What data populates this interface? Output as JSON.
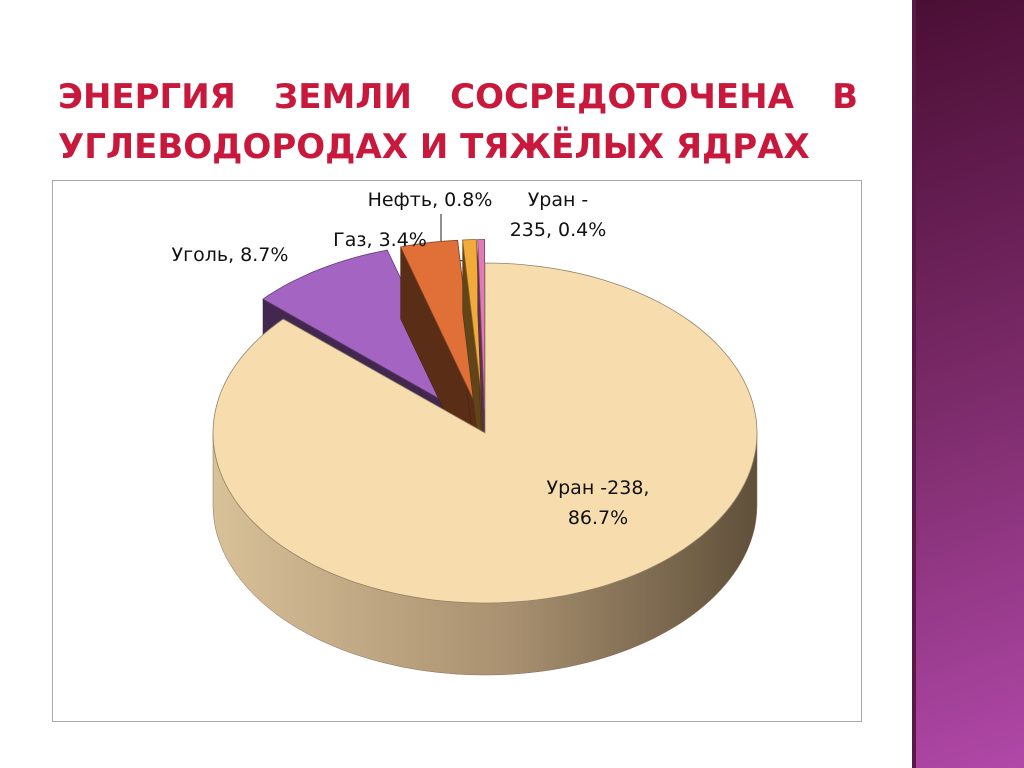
{
  "title": "ЭНЕРГИЯ ЗЕМЛИ СОСРЕДОТОЧЕНА В УГЛЕВОДОРОДАХ И ТЯЖЁЛЫХ ЯДРАХ",
  "chart_data": {
    "type": "pie3d",
    "categories": [
      "Уран -238",
      "Уголь",
      "Газ",
      "Нефть",
      "Уран - 235"
    ],
    "values": [
      86.7,
      8.7,
      3.4,
      0.8,
      0.4
    ],
    "value_labels": [
      "Уран -238, 86.7%",
      "Уголь, 8.7%",
      "Газ, 3.4%",
      "Нефть, 0.8%",
      "Уран - 235, 0.4%"
    ],
    "colors": [
      "#f7dcae",
      "#a464c2",
      "#e07038",
      "#f2aa3a",
      "#e27ab8"
    ]
  }
}
